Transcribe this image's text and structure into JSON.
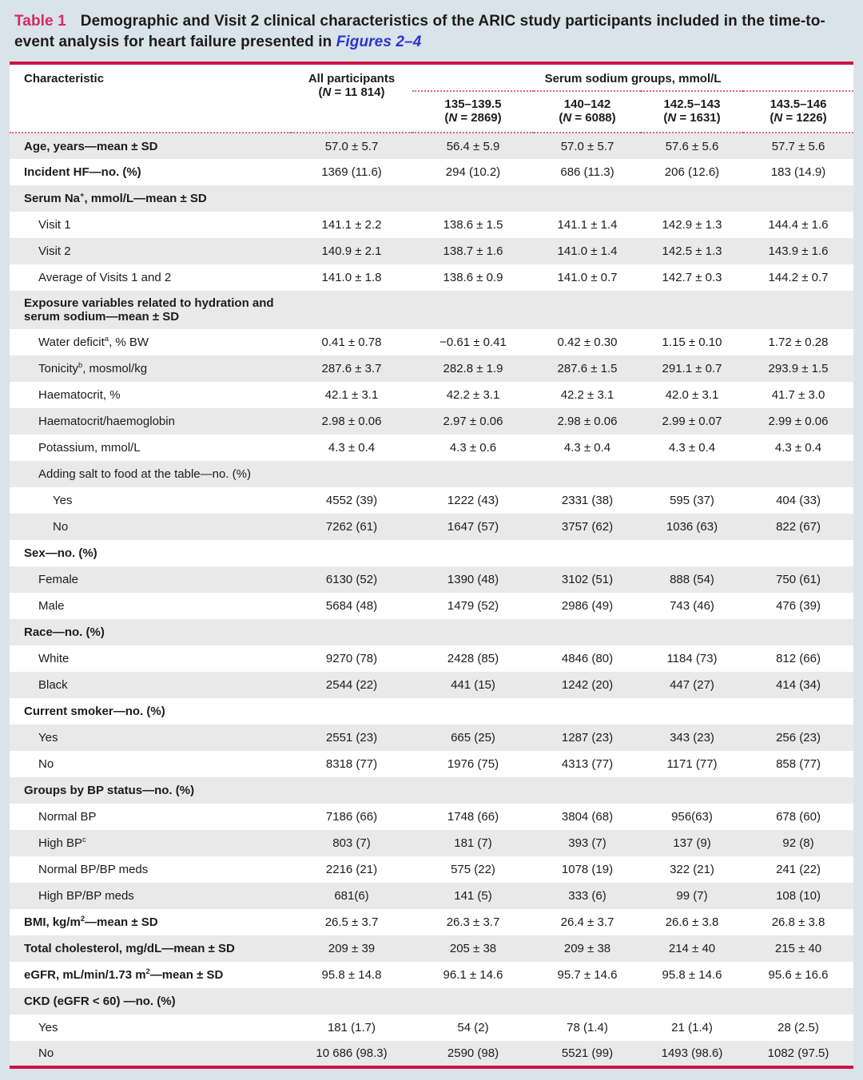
{
  "title": {
    "tag": "Table 1",
    "text": "Demographic and Visit 2 clinical characteristics of the ARIC study participants included in the time-to-event analysis for heart failure presented in ",
    "link": "Figures 2–4"
  },
  "colors": {
    "rule_red": "#cd1447",
    "title_red": "#d62a62",
    "link_blue": "#2936d0",
    "dotted_pink": "#e5608c",
    "row_shade": "#e9e9e9",
    "page_bg": "#d9e3ea"
  },
  "header": {
    "characteristic": "Characteristic",
    "all_participants": {
      "label": "All participants",
      "n": "(N = 11 814)"
    },
    "group_title": "Serum sodium groups, mmol/L",
    "groups": [
      {
        "range": "135–139.5",
        "n": "(N = 2869)"
      },
      {
        "range": "140–142",
        "n": "(N = 6088)"
      },
      {
        "range": "142.5–143",
        "n": "(N = 1631)"
      },
      {
        "range": "143.5–146",
        "n": "(N = 1226)"
      }
    ]
  },
  "rows": [
    {
      "label": {
        "pre": "Age, years—mean ± SD"
      },
      "bold": true,
      "indent": 0,
      "values": [
        "57.0 ± 5.7",
        "56.4 ± 5.9",
        "57.0 ± 5.7",
        "57.6 ± 5.6",
        "57.7 ± 5.6"
      ]
    },
    {
      "label": {
        "pre": "Incident HF—no. (%)"
      },
      "bold": true,
      "indent": 0,
      "values": [
        "1369 (11.6)",
        "294 (10.2)",
        "686 (11.3)",
        "206 (12.6)",
        "183 (14.9)"
      ]
    },
    {
      "label": {
        "pre": "Serum Na",
        "sup": "+",
        "post": ", mmol/L—mean ± SD"
      },
      "bold": true,
      "indent": 0,
      "values": null
    },
    {
      "label": {
        "pre": "Visit 1"
      },
      "bold": false,
      "indent": 1,
      "values": [
        "141.1 ± 2.2",
        "138.6 ± 1.5",
        "141.1 ± 1.4",
        "142.9 ± 1.3",
        "144.4 ± 1.6"
      ]
    },
    {
      "label": {
        "pre": "Visit 2"
      },
      "bold": false,
      "indent": 1,
      "values": [
        "140.9 ± 2.1",
        "138.7 ± 1.6",
        "141.0 ± 1.4",
        "142.5 ± 1.3",
        "143.9 ± 1.6"
      ]
    },
    {
      "label": {
        "pre": "Average of Visits 1 and 2"
      },
      "bold": false,
      "indent": 1,
      "values": [
        "141.0 ± 1.8",
        "138.6 ± 0.9",
        "141.0 ± 0.7",
        "142.7 ± 0.3",
        "144.2 ± 0.7"
      ]
    },
    {
      "label": {
        "pre": "Exposure variables related to hydration and serum sodium—mean ± SD"
      },
      "bold": true,
      "indent": 0,
      "values": null
    },
    {
      "label": {
        "pre": "Water deficit",
        "sup": "a",
        "post": ", % BW"
      },
      "bold": false,
      "indent": 1,
      "values": [
        "0.41 ± 0.78",
        "−0.61 ± 0.41",
        "0.42 ± 0.30",
        "1.15 ± 0.10",
        "1.72 ± 0.28"
      ]
    },
    {
      "label": {
        "pre": "Tonicity",
        "sup": "b",
        "post": ", mosmol/kg"
      },
      "bold": false,
      "indent": 1,
      "values": [
        "287.6 ± 3.7",
        "282.8 ± 1.9",
        "287.6 ± 1.5",
        "291.1 ± 0.7",
        "293.9 ± 1.5"
      ]
    },
    {
      "label": {
        "pre": "Haematocrit, %"
      },
      "bold": false,
      "indent": 1,
      "values": [
        "42.1 ± 3.1",
        "42.2 ± 3.1",
        "42.2 ± 3.1",
        "42.0 ± 3.1",
        "41.7 ± 3.0"
      ]
    },
    {
      "label": {
        "pre": "Haematocrit/haemoglobin"
      },
      "bold": false,
      "indent": 1,
      "values": [
        "2.98 ± 0.06",
        "2.97 ± 0.06",
        "2.98 ± 0.06",
        "2.99 ± 0.07",
        "2.99 ± 0.06"
      ]
    },
    {
      "label": {
        "pre": "Potassium, mmol/L"
      },
      "bold": false,
      "indent": 1,
      "values": [
        "4.3 ± 0.4",
        "4.3 ± 0.6",
        "4.3 ± 0.4",
        "4.3 ± 0.4",
        "4.3 ± 0.4"
      ]
    },
    {
      "label": {
        "pre": "Adding salt to food at the table—no. (%)"
      },
      "bold": false,
      "indent": 1,
      "values": null
    },
    {
      "label": {
        "pre": "Yes"
      },
      "bold": false,
      "indent": 2,
      "values": [
        "4552 (39)",
        "1222 (43)",
        "2331 (38)",
        "595 (37)",
        "404 (33)"
      ]
    },
    {
      "label": {
        "pre": "No"
      },
      "bold": false,
      "indent": 2,
      "values": [
        "7262 (61)",
        "1647 (57)",
        "3757 (62)",
        "1036 (63)",
        "822 (67)"
      ]
    },
    {
      "label": {
        "pre": "Sex—no. (%)"
      },
      "bold": true,
      "indent": 0,
      "values": null
    },
    {
      "label": {
        "pre": "Female"
      },
      "bold": false,
      "indent": 1,
      "values": [
        "6130 (52)",
        "1390 (48)",
        "3102 (51)",
        "888 (54)",
        "750 (61)"
      ]
    },
    {
      "label": {
        "pre": "Male"
      },
      "bold": false,
      "indent": 1,
      "values": [
        "5684 (48)",
        "1479 (52)",
        "2986 (49)",
        "743 (46)",
        "476 (39)"
      ]
    },
    {
      "label": {
        "pre": "Race—no. (%)"
      },
      "bold": true,
      "indent": 0,
      "values": null
    },
    {
      "label": {
        "pre": "White"
      },
      "bold": false,
      "indent": 1,
      "values": [
        "9270 (78)",
        "2428 (85)",
        "4846 (80)",
        "1184 (73)",
        "812 (66)"
      ]
    },
    {
      "label": {
        "pre": "Black"
      },
      "bold": false,
      "indent": 1,
      "values": [
        "2544 (22)",
        "441 (15)",
        "1242 (20)",
        "447 (27)",
        "414 (34)"
      ]
    },
    {
      "label": {
        "pre": "Current smoker—no. (%)"
      },
      "bold": true,
      "indent": 0,
      "values": null
    },
    {
      "label": {
        "pre": "Yes"
      },
      "bold": false,
      "indent": 1,
      "values": [
        "2551 (23)",
        "665 (25)",
        "1287 (23)",
        "343 (23)",
        "256 (23)"
      ]
    },
    {
      "label": {
        "pre": "No"
      },
      "bold": false,
      "indent": 1,
      "values": [
        "8318 (77)",
        "1976 (75)",
        "4313 (77)",
        "1171 (77)",
        "858 (77)"
      ]
    },
    {
      "label": {
        "pre": "Groups by BP status—no. (%)"
      },
      "bold": true,
      "indent": 0,
      "values": null
    },
    {
      "label": {
        "pre": "Normal BP"
      },
      "bold": false,
      "indent": 1,
      "values": [
        "7186 (66)",
        "1748 (66)",
        "3804 (68)",
        "956(63)",
        "678 (60)"
      ]
    },
    {
      "label": {
        "pre": "High BP",
        "sup": "c"
      },
      "bold": false,
      "indent": 1,
      "values": [
        "803 (7)",
        "181 (7)",
        "393 (7)",
        "137 (9)",
        "92 (8)"
      ]
    },
    {
      "label": {
        "pre": "Normal BP/BP meds"
      },
      "bold": false,
      "indent": 1,
      "values": [
        "2216 (21)",
        "575 (22)",
        "1078 (19)",
        "322 (21)",
        "241 (22)"
      ]
    },
    {
      "label": {
        "pre": "High BP/BP meds"
      },
      "bold": false,
      "indent": 1,
      "values": [
        "681(6)",
        "141 (5)",
        "333 (6)",
        "99 (7)",
        "108 (10)"
      ]
    },
    {
      "label": {
        "pre": "BMI, kg/m",
        "sup": "2",
        "post": "—mean ± SD"
      },
      "bold": true,
      "indent": 0,
      "values": [
        "26.5 ± 3.7",
        "26.3 ± 3.7",
        "26.4 ± 3.7",
        "26.6 ± 3.8",
        "26.8 ± 3.8"
      ]
    },
    {
      "label": {
        "pre": "Total cholesterol, mg/dL—mean ± SD"
      },
      "bold": true,
      "indent": 0,
      "values": [
        "209 ± 39",
        "205 ± 38",
        "209 ± 38",
        "214 ± 40",
        "215 ± 40"
      ]
    },
    {
      "label": {
        "pre": "eGFR, mL/min/1.73 m",
        "sup": "2",
        "post": "—mean ± SD"
      },
      "bold": true,
      "indent": 0,
      "values": [
        "95.8 ± 14.8",
        "96.1 ± 14.6",
        "95.7 ± 14.6",
        "95.8 ± 14.6",
        "95.6 ± 16.6"
      ]
    },
    {
      "label": {
        "pre": "CKD (eGFR < 60) —no. (%)"
      },
      "bold": true,
      "indent": 0,
      "values": null
    },
    {
      "label": {
        "pre": "Yes"
      },
      "bold": false,
      "indent": 1,
      "values": [
        "181 (1.7)",
        "54 (2)",
        "78 (1.4)",
        "21 (1.4)",
        "28 (2.5)"
      ]
    },
    {
      "label": {
        "pre": "No"
      },
      "bold": false,
      "indent": 1,
      "values": [
        "10 686 (98.3)",
        "2590 (98)",
        "5521 (99)",
        "1493 (98.6)",
        "1082 (97.5)"
      ]
    }
  ]
}
